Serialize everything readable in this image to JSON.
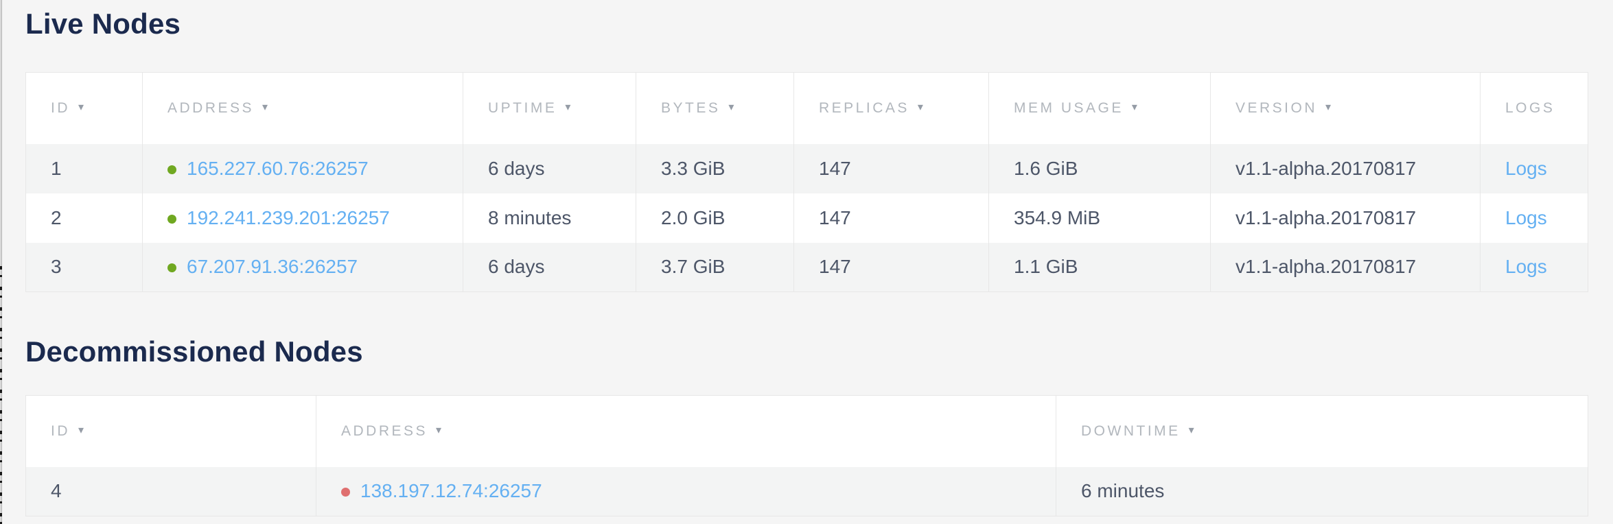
{
  "icons": {
    "sort_arrow": "▾"
  },
  "colors": {
    "link": "#64b0f2",
    "status_live": "#70a821",
    "status_down": "#df6f6f",
    "heading": "#1b2a4e",
    "header_text": "#b2b7bd",
    "body_text": "#4d5668"
  },
  "live_nodes": {
    "title": "Live Nodes",
    "columns": [
      {
        "label": "ID",
        "sortable": true
      },
      {
        "label": "ADDRESS",
        "sortable": true
      },
      {
        "label": "UPTIME",
        "sortable": true
      },
      {
        "label": "BYTES",
        "sortable": true
      },
      {
        "label": "REPLICAS",
        "sortable": true
      },
      {
        "label": "MEM USAGE",
        "sortable": true
      },
      {
        "label": "VERSION",
        "sortable": true
      },
      {
        "label": "LOGS",
        "sortable": false
      }
    ],
    "rows": [
      {
        "id": "1",
        "status": "live",
        "address": "165.227.60.76:26257",
        "uptime": "6 days",
        "bytes": "3.3 GiB",
        "replicas": "147",
        "mem_usage": "1.6 GiB",
        "version": "v1.1-alpha.20170817",
        "logs_label": "Logs"
      },
      {
        "id": "2",
        "status": "live",
        "address": "192.241.239.201:26257",
        "uptime": "8 minutes",
        "bytes": "2.0 GiB",
        "replicas": "147",
        "mem_usage": "354.9 MiB",
        "version": "v1.1-alpha.20170817",
        "logs_label": "Logs"
      },
      {
        "id": "3",
        "status": "live",
        "address": "67.207.91.36:26257",
        "uptime": "6 days",
        "bytes": "3.7 GiB",
        "replicas": "147",
        "mem_usage": "1.1 GiB",
        "version": "v1.1-alpha.20170817",
        "logs_label": "Logs"
      }
    ]
  },
  "decommissioned_nodes": {
    "title": "Decommissioned Nodes",
    "columns": [
      {
        "label": "ID",
        "sortable": true
      },
      {
        "label": "ADDRESS",
        "sortable": true
      },
      {
        "label": "DOWNTIME",
        "sortable": true
      }
    ],
    "rows": [
      {
        "id": "4",
        "status": "down",
        "address": "138.197.12.74:26257",
        "downtime": "6 minutes"
      }
    ]
  }
}
